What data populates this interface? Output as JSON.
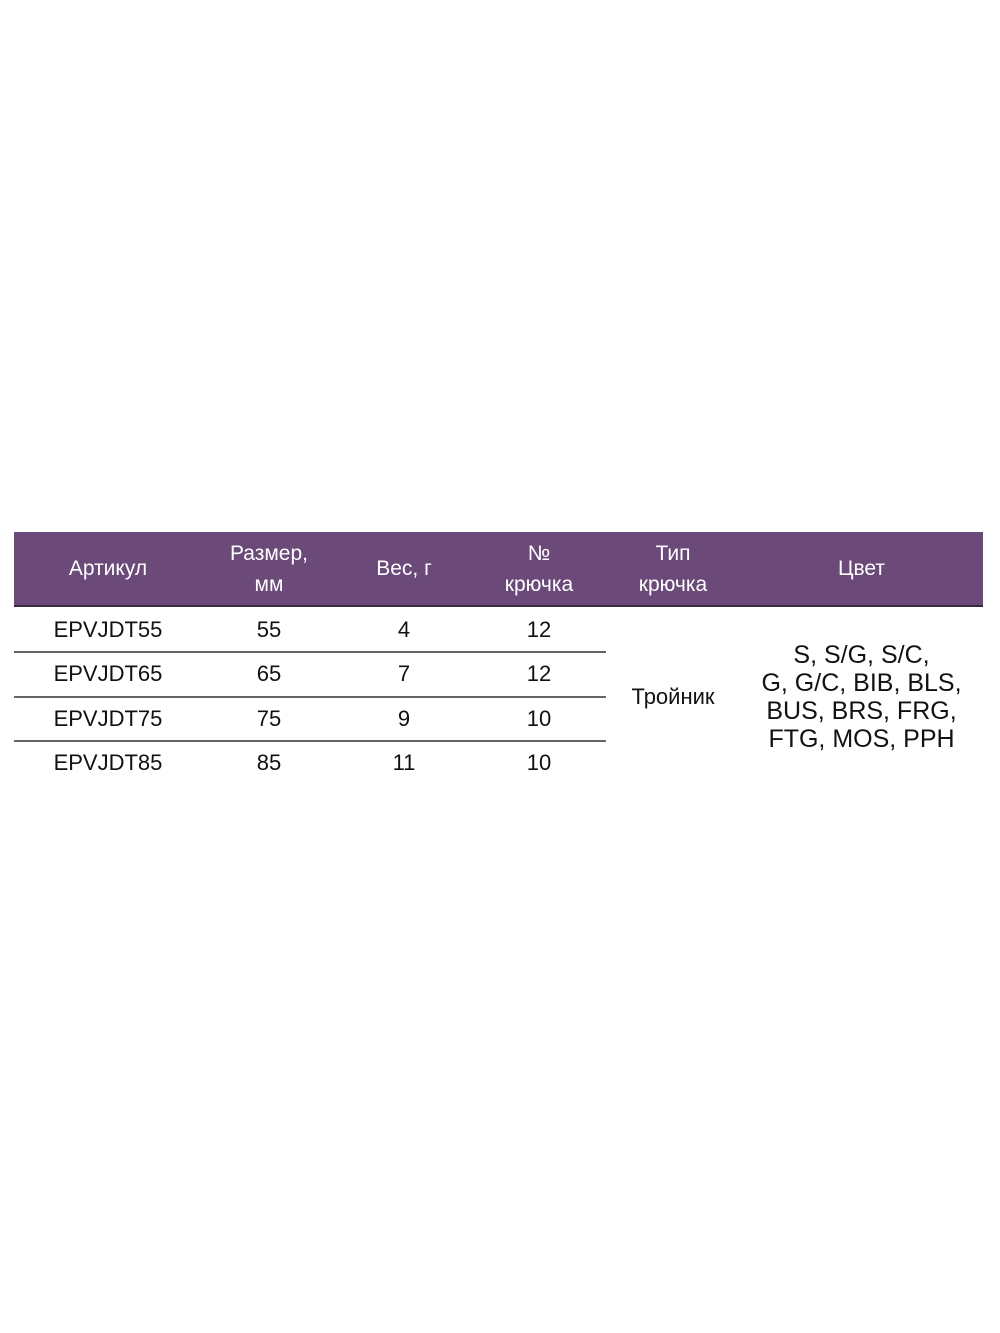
{
  "table": {
    "header_color": "#6b4a79",
    "headers": [
      [
        "Артикул"
      ],
      [
        "Размер,",
        "мм"
      ],
      [
        "Вес, г"
      ],
      [
        "№",
        "крючка"
      ],
      [
        "Тип",
        "крючка"
      ],
      [
        "Цвет"
      ]
    ],
    "rows": [
      [
        "EPVJDT55",
        "55",
        "4",
        "12"
      ],
      [
        "EPVJDT65",
        "65",
        "7",
        "12"
      ],
      [
        "EPVJDT75",
        "75",
        "9",
        "10"
      ],
      [
        "EPVJDT85",
        "85",
        "11",
        "10"
      ]
    ],
    "hook_type": "Тройник",
    "colors_lines": [
      "S, S/G, S/C,",
      "G, G/C, BIB, BLS,",
      "BUS, BRS, FRG,",
      "FTG, MOS, PPH"
    ]
  }
}
